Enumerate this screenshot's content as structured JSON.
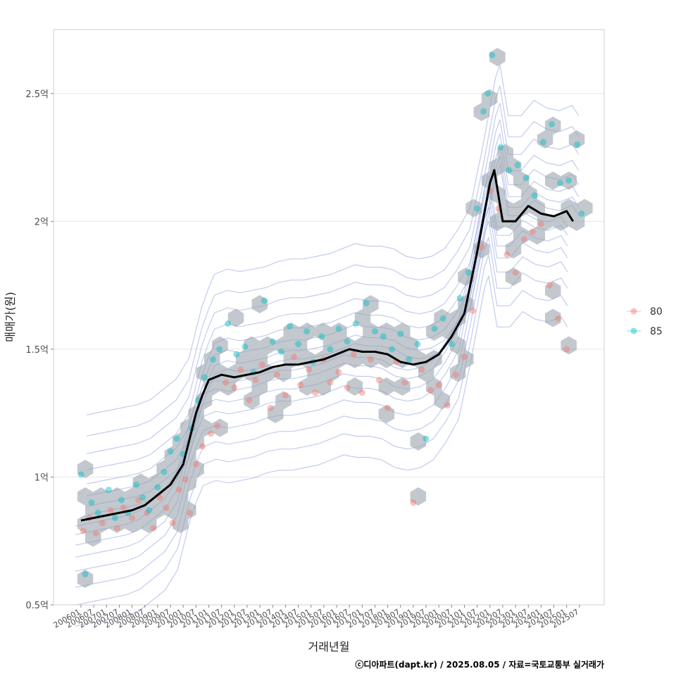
{
  "chart_data": {
    "type": "scatter",
    "xlabel": "거래년월",
    "ylabel": "매매가(원)",
    "caption": "ⓒ디아파트(dapt.kr) / 2025.08.05 / 자료=국토교통부 실거래가",
    "x_ticks": [
      "200601",
      "200607",
      "200701",
      "200707",
      "200801",
      "200807",
      "200901",
      "200907",
      "201001",
      "201007",
      "201101",
      "201107",
      "201201",
      "201207",
      "201301",
      "201307",
      "201401",
      "201407",
      "201501",
      "201507",
      "201601",
      "201607",
      "201701",
      "201707",
      "201801",
      "201807",
      "201901",
      "201907",
      "202001",
      "202007",
      "202101",
      "202107",
      "202201",
      "202207",
      "202301",
      "202307",
      "202401",
      "202407",
      "202501",
      "202507"
    ],
    "y_ticks": [
      {
        "value": 0.5,
        "label": "0.5억"
      },
      {
        "value": 1.0,
        "label": "1억"
      },
      {
        "value": 1.5,
        "label": "1.5억"
      },
      {
        "value": 2.0,
        "label": "2억"
      },
      {
        "value": 2.5,
        "label": "2.5억"
      }
    ],
    "ylim": [
      0.5,
      2.75
    ],
    "legend": {
      "position": "right",
      "entries": [
        {
          "name": "80",
          "color": "#F8766D"
        },
        {
          "name": "85",
          "color": "#00BFC4"
        }
      ]
    },
    "grid": true,
    "trend_line": {
      "color": "#000000",
      "points": [
        [
          "2006-01",
          0.83
        ],
        [
          "2006-07",
          0.84
        ],
        [
          "2007-01",
          0.85
        ],
        [
          "2007-07",
          0.86
        ],
        [
          "2008-01",
          0.87
        ],
        [
          "2008-07",
          0.89
        ],
        [
          "2009-01",
          0.93
        ],
        [
          "2009-07",
          0.97
        ],
        [
          "2010-01",
          1.05
        ],
        [
          "2010-07",
          1.25
        ],
        [
          "2010-10",
          1.32
        ],
        [
          "2011-01",
          1.38
        ],
        [
          "2011-07",
          1.4
        ],
        [
          "2012-01",
          1.39
        ],
        [
          "2012-07",
          1.4
        ],
        [
          "2013-01",
          1.41
        ],
        [
          "2013-07",
          1.43
        ],
        [
          "2014-01",
          1.44
        ],
        [
          "2014-07",
          1.44
        ],
        [
          "2015-01",
          1.45
        ],
        [
          "2015-07",
          1.46
        ],
        [
          "2016-01",
          1.48
        ],
        [
          "2016-07",
          1.5
        ],
        [
          "2017-01",
          1.49
        ],
        [
          "2017-07",
          1.49
        ],
        [
          "2018-01",
          1.48
        ],
        [
          "2018-07",
          1.45
        ],
        [
          "2019-01",
          1.44
        ],
        [
          "2019-07",
          1.45
        ],
        [
          "2020-01",
          1.48
        ],
        [
          "2020-07",
          1.55
        ],
        [
          "2021-01",
          1.64
        ],
        [
          "2021-07",
          1.88
        ],
        [
          "2022-01",
          2.15
        ],
        [
          "2022-03",
          2.2
        ],
        [
          "2022-07",
          2.0
        ],
        [
          "2023-01",
          2.0
        ],
        [
          "2023-07",
          2.06
        ],
        [
          "2024-01",
          2.03
        ],
        [
          "2024-07",
          2.02
        ],
        [
          "2025-01",
          2.04
        ],
        [
          "2025-04",
          2.0
        ]
      ]
    },
    "series": [
      {
        "name": "80",
        "points": [
          [
            "2006-02",
            0.79
          ],
          [
            "2006-05",
            0.84
          ],
          [
            "2006-08",
            0.78
          ],
          [
            "2006-11",
            0.82
          ],
          [
            "2007-03",
            0.87
          ],
          [
            "2007-06",
            0.8
          ],
          [
            "2007-09",
            0.88
          ],
          [
            "2008-01",
            0.84
          ],
          [
            "2008-04",
            0.91
          ],
          [
            "2008-08",
            0.86
          ],
          [
            "2008-11",
            0.8
          ],
          [
            "2009-02",
            0.92
          ],
          [
            "2009-05",
            0.88
          ],
          [
            "2009-08",
            0.82
          ],
          [
            "2009-11",
            0.95
          ],
          [
            "2010-02",
            0.99
          ],
          [
            "2010-04",
            0.86
          ],
          [
            "2010-07",
            1.05
          ],
          [
            "2010-10",
            1.12
          ],
          [
            "2011-02",
            1.17
          ],
          [
            "2011-05",
            1.2
          ],
          [
            "2011-09",
            1.37
          ],
          [
            "2012-01",
            1.35
          ],
          [
            "2012-04",
            1.42
          ],
          [
            "2012-08",
            1.3
          ],
          [
            "2012-11",
            1.38
          ],
          [
            "2013-02",
            1.44
          ],
          [
            "2013-06",
            1.27
          ],
          [
            "2013-09",
            1.4
          ],
          [
            "2014-01",
            1.32
          ],
          [
            "2014-05",
            1.47
          ],
          [
            "2014-08",
            1.36
          ],
          [
            "2014-12",
            1.42
          ],
          [
            "2015-03",
            1.33
          ],
          [
            "2015-07",
            1.46
          ],
          [
            "2015-10",
            1.37
          ],
          [
            "2016-02",
            1.41
          ],
          [
            "2016-06",
            1.35
          ],
          [
            "2016-09",
            1.48
          ],
          [
            "2017-01",
            1.33
          ],
          [
            "2017-05",
            1.46
          ],
          [
            "2017-09",
            1.38
          ],
          [
            "2018-01",
            1.27
          ],
          [
            "2018-05",
            1.45
          ],
          [
            "2018-09",
            1.37
          ],
          [
            "2019-01",
            0.9
          ],
          [
            "2019-05",
            1.42
          ],
          [
            "2019-09",
            1.34
          ],
          [
            "2020-01",
            1.36
          ],
          [
            "2020-05",
            1.28
          ],
          [
            "2020-09",
            1.4
          ],
          [
            "2021-01",
            1.47
          ],
          [
            "2021-05",
            1.65
          ],
          [
            "2021-09",
            1.9
          ],
          [
            "2022-01",
            2.12
          ],
          [
            "2022-05",
            2.05
          ],
          [
            "2022-09",
            1.87
          ],
          [
            "2023-01",
            1.8
          ],
          [
            "2023-05",
            1.93
          ],
          [
            "2023-09",
            1.96
          ],
          [
            "2024-01",
            1.99
          ],
          [
            "2024-05",
            1.75
          ],
          [
            "2024-09",
            1.62
          ],
          [
            "2025-01",
            1.5
          ]
        ]
      },
      {
        "name": "85",
        "points": [
          [
            "2006-01",
            1.01
          ],
          [
            "2006-03",
            0.62
          ],
          [
            "2006-06",
            0.9
          ],
          [
            "2006-09",
            0.86
          ],
          [
            "2007-02",
            0.95
          ],
          [
            "2007-05",
            0.84
          ],
          [
            "2007-08",
            0.91
          ],
          [
            "2007-11",
            0.86
          ],
          [
            "2008-03",
            0.97
          ],
          [
            "2008-06",
            0.92
          ],
          [
            "2008-09",
            0.87
          ],
          [
            "2009-01",
            0.96
          ],
          [
            "2009-04",
            1.02
          ],
          [
            "2009-07",
            1.1
          ],
          [
            "2009-10",
            1.15
          ],
          [
            "2010-01",
            1.09
          ],
          [
            "2010-05",
            1.19
          ],
          [
            "2010-08",
            1.3
          ],
          [
            "2010-11",
            1.39
          ],
          [
            "2011-03",
            1.46
          ],
          [
            "2011-06",
            1.5
          ],
          [
            "2011-10",
            1.6
          ],
          [
            "2012-02",
            1.48
          ],
          [
            "2012-06",
            1.51
          ],
          [
            "2012-10",
            1.41
          ],
          [
            "2013-03",
            1.69
          ],
          [
            "2013-07",
            1.53
          ],
          [
            "2013-11",
            1.49
          ],
          [
            "2014-03",
            1.59
          ],
          [
            "2014-07",
            1.52
          ],
          [
            "2014-11",
            1.57
          ],
          [
            "2015-02",
            1.45
          ],
          [
            "2015-06",
            1.55
          ],
          [
            "2015-10",
            1.5
          ],
          [
            "2016-02",
            1.58
          ],
          [
            "2016-06",
            1.53
          ],
          [
            "2016-10",
            1.6
          ],
          [
            "2017-03",
            1.68
          ],
          [
            "2017-07",
            1.57
          ],
          [
            "2017-11",
            1.55
          ],
          [
            "2018-03",
            1.5
          ],
          [
            "2018-07",
            1.56
          ],
          [
            "2018-11",
            1.46
          ],
          [
            "2019-03",
            1.52
          ],
          [
            "2019-07",
            1.15
          ],
          [
            "2019-11",
            1.58
          ],
          [
            "2020-03",
            1.62
          ],
          [
            "2020-07",
            1.52
          ],
          [
            "2020-11",
            1.7
          ],
          [
            "2021-03",
            1.8
          ],
          [
            "2021-07",
            2.05
          ],
          [
            "2021-10",
            2.43
          ],
          [
            "2021-12",
            2.5
          ],
          [
            "2022-02",
            2.65
          ],
          [
            "2022-06",
            2.29
          ],
          [
            "2022-10",
            2.2
          ],
          [
            "2023-02",
            2.22
          ],
          [
            "2023-06",
            2.17
          ],
          [
            "2023-10",
            2.1
          ],
          [
            "2024-02",
            2.31
          ],
          [
            "2024-06",
            2.38
          ],
          [
            "2024-10",
            2.15
          ],
          [
            "2025-02",
            2.16
          ],
          [
            "2025-06",
            2.3
          ],
          [
            "2025-08",
            2.03
          ]
        ]
      }
    ]
  }
}
